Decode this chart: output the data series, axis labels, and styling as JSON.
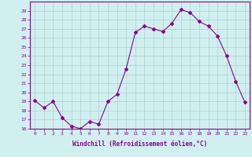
{
  "x": [
    0,
    1,
    2,
    3,
    4,
    5,
    6,
    7,
    8,
    9,
    10,
    11,
    12,
    13,
    14,
    15,
    16,
    17,
    18,
    19,
    20,
    21,
    22,
    23
  ],
  "y": [
    19.1,
    18.3,
    19.0,
    17.2,
    16.3,
    16.0,
    16.8,
    16.5,
    19.0,
    19.8,
    22.6,
    26.6,
    27.3,
    27.0,
    26.7,
    27.6,
    29.1,
    28.8,
    27.8,
    27.3,
    26.2,
    24.0,
    21.2,
    18.9
  ],
  "line_color": "#8b008b",
  "marker": "D",
  "marker_size": 2,
  "bg_color": "#d0f0f0",
  "grid_color": "#b0d0d0",
  "xlabel": "Windchill (Refroidissement éolien,°C)",
  "xlabel_color": "#8b008b",
  "ylim": [
    16,
    30
  ],
  "yticks": [
    16,
    17,
    18,
    19,
    20,
    21,
    22,
    23,
    24,
    25,
    26,
    27,
    28,
    29
  ],
  "xticks": [
    0,
    1,
    2,
    3,
    4,
    5,
    6,
    7,
    8,
    9,
    10,
    11,
    12,
    13,
    14,
    15,
    16,
    17,
    18,
    19,
    20,
    21,
    22,
    23
  ],
  "tick_color": "#8b008b",
  "spine_color": "#8b008b"
}
